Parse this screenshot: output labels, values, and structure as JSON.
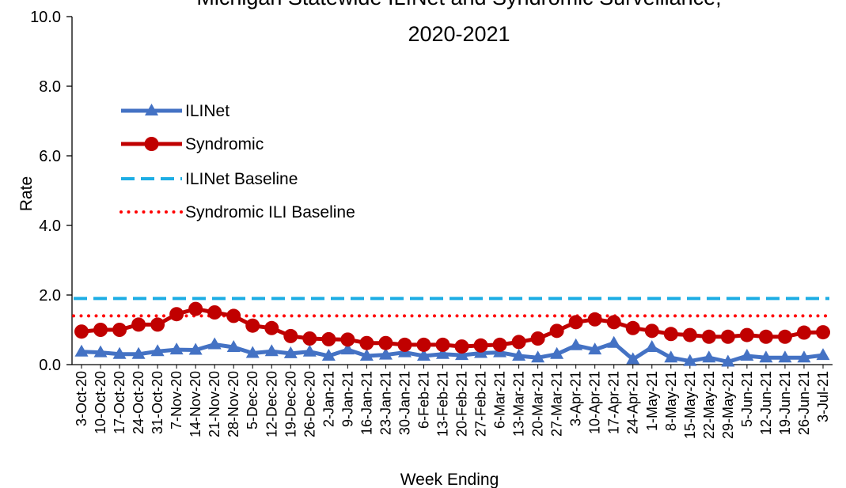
{
  "chart_data": {
    "type": "line",
    "title_line1": "Michigan Statewide ILINet and Syndromic Surveillance,",
    "title_line2": "2020-2021",
    "xlabel": "Week Ending",
    "ylabel": "Rate",
    "ylim": [
      0,
      10
    ],
    "yticks": [
      "0.0",
      "2.0",
      "4.0",
      "6.0",
      "8.0",
      "10.0"
    ],
    "grid": false,
    "legend_position": "top-left",
    "categories": [
      "3-Oct-20",
      "10-Oct-20",
      "17-Oct-20",
      "24-Oct-20",
      "31-Oct-20",
      "7-Nov-20",
      "14-Nov-20",
      "21-Nov-20",
      "28-Nov-20",
      "5-Dec-20",
      "12-Dec-20",
      "19-Dec-20",
      "26-Dec-20",
      "2-Jan-21",
      "9-Jan-21",
      "16-Jan-21",
      "23-Jan-21",
      "30-Jan-21",
      "6-Feb-21",
      "13-Feb-21",
      "20-Feb-21",
      "27-Feb-21",
      "6-Mar-21",
      "13-Mar-21",
      "20-Mar-21",
      "27-Mar-21",
      "3-Apr-21",
      "10-Apr-21",
      "17-Apr-21",
      "24-Apr-21",
      "1-May-21",
      "8-May-21",
      "15-May-21",
      "22-May-21",
      "29-May-21",
      "5-Jun-21",
      "12-Jun-21",
      "19-Jun-21",
      "26-Jun-21",
      "3-Jul-21"
    ],
    "series": [
      {
        "name": "ILINet",
        "color": "#4472C4",
        "style": "solid",
        "marker": "triangle",
        "values": [
          0.37,
          0.35,
          0.3,
          0.3,
          0.38,
          0.43,
          0.42,
          0.58,
          0.5,
          0.33,
          0.38,
          0.32,
          0.37,
          0.25,
          0.43,
          0.25,
          0.28,
          0.35,
          0.25,
          0.3,
          0.27,
          0.33,
          0.35,
          0.25,
          0.2,
          0.3,
          0.55,
          0.43,
          0.62,
          0.15,
          0.5,
          0.2,
          0.1,
          0.2,
          0.08,
          0.25,
          0.2,
          0.2,
          0.2,
          0.27
        ]
      },
      {
        "name": "Syndromic",
        "color": "#C00000",
        "style": "solid",
        "marker": "circle",
        "values": [
          0.95,
          1.0,
          1.0,
          1.15,
          1.15,
          1.45,
          1.6,
          1.5,
          1.4,
          1.12,
          1.05,
          0.82,
          0.75,
          0.73,
          0.72,
          0.62,
          0.62,
          0.57,
          0.57,
          0.57,
          0.52,
          0.55,
          0.57,
          0.65,
          0.75,
          0.97,
          1.22,
          1.3,
          1.22,
          1.05,
          0.97,
          0.88,
          0.85,
          0.8,
          0.8,
          0.85,
          0.8,
          0.8,
          0.92,
          0.93
        ]
      },
      {
        "name": "ILINet Baseline",
        "color": "#1CADE4",
        "style": "dashed",
        "value": 1.9
      },
      {
        "name": "Syndromic ILI Baseline",
        "color": "#FF0000",
        "style": "dotted",
        "value": 1.4
      }
    ]
  }
}
